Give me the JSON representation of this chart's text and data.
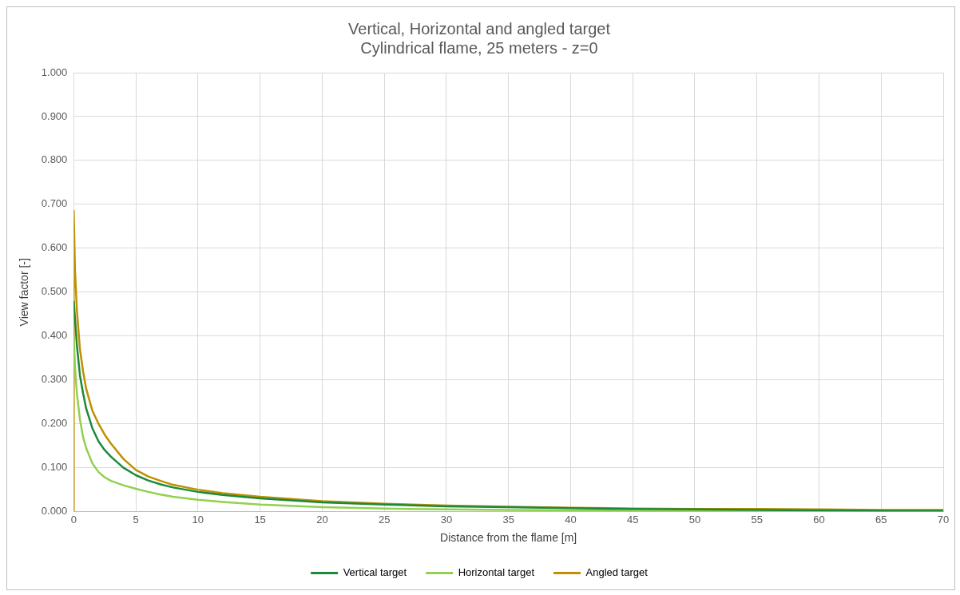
{
  "chart_data": {
    "type": "line",
    "title": "Vertical, Horizontal and angled target",
    "subtitle": "Cylindrical flame, 25 meters - z=0",
    "xlabel": "Distance from the flame [m]",
    "ylabel": "View factor [-]",
    "x": [
      0,
      0.1,
      0.25,
      0.5,
      0.75,
      1,
      1.5,
      2,
      2.5,
      3,
      4,
      5,
      6,
      7,
      8,
      10,
      12,
      15,
      20,
      25,
      30,
      35,
      40,
      45,
      50,
      55,
      60,
      65,
      70
    ],
    "series": [
      {
        "name": "Vertical target",
        "color": "#1a8a3a",
        "values": [
          0.48,
          0.44,
          0.38,
          0.31,
          0.27,
          0.235,
          0.19,
          0.16,
          0.14,
          0.125,
          0.1,
          0.083,
          0.071,
          0.062,
          0.055,
          0.045,
          0.038,
          0.03,
          0.021,
          0.016,
          0.012,
          0.01,
          0.008,
          0.006,
          0.005,
          0.004,
          0.003,
          0.002,
          0.002
        ]
      },
      {
        "name": "Horizontal target",
        "color": "#92d050",
        "values": [
          0.4,
          0.33,
          0.27,
          0.21,
          0.17,
          0.145,
          0.11,
          0.09,
          0.078,
          0.07,
          0.06,
          0.052,
          0.045,
          0.039,
          0.034,
          0.027,
          0.022,
          0.016,
          0.01,
          0.007,
          0.005,
          0.004,
          0.003,
          0.002,
          0.001,
          0,
          0,
          0,
          0
        ]
      },
      {
        "name": "Angled target",
        "color": "#bf9000",
        "x": [
          0,
          0,
          0.1,
          0.25,
          0.5,
          0.75,
          1,
          1.5,
          2,
          2.5,
          3,
          4,
          5,
          6,
          7,
          8,
          10,
          12,
          15,
          20,
          25,
          30,
          35,
          40,
          45,
          50,
          55,
          60,
          65,
          70
        ],
        "values": [
          0,
          0.685,
          0.55,
          0.46,
          0.37,
          0.32,
          0.28,
          0.23,
          0.2,
          0.175,
          0.155,
          0.12,
          0.095,
          0.08,
          0.07,
          0.061,
          0.05,
          0.042,
          0.034,
          0.024,
          0.018,
          0.014,
          0.011,
          0.009,
          0.007,
          0.006,
          0.006,
          0.005,
          0.004,
          0.004
        ]
      }
    ],
    "xlim": [
      0,
      70
    ],
    "xticks": [
      0,
      5,
      10,
      15,
      20,
      25,
      30,
      35,
      40,
      45,
      50,
      55,
      60,
      65,
      70
    ],
    "ylim": [
      0,
      1
    ],
    "yticks": [
      {
        "value": 0,
        "label": "0.000"
      },
      {
        "value": 0.1,
        "label": "0.100"
      },
      {
        "value": 0.2,
        "label": "0.200"
      },
      {
        "value": 0.3,
        "label": "0.300"
      },
      {
        "value": 0.4,
        "label": "0.400"
      },
      {
        "value": 0.5,
        "label": "0.500"
      },
      {
        "value": 0.6,
        "label": "0.600"
      },
      {
        "value": 0.7,
        "label": "0.700"
      },
      {
        "value": 0.8,
        "label": "0.800"
      },
      {
        "value": 0.9,
        "label": "0.900"
      },
      {
        "value": 1,
        "label": "1.000"
      }
    ],
    "grid": true,
    "legend": "bottom",
    "marker": "none",
    "line_style": "solid"
  }
}
